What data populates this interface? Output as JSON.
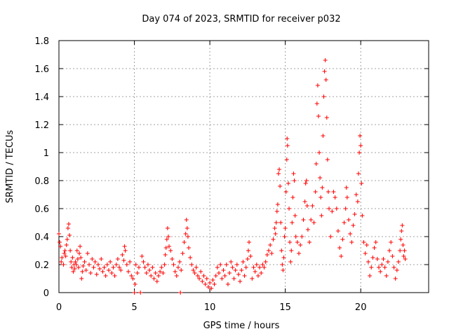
{
  "chart_data": {
    "type": "scatter",
    "title": "Day 074 of 2023, SRMTID for receiver p032",
    "xlabel": "GPS time / hours",
    "ylabel": "SRMTID / TECUs",
    "xlim": [
      0,
      24.5
    ],
    "ylim": [
      0,
      1.8
    ],
    "xticks": [
      0,
      5,
      10,
      15,
      20
    ],
    "xtick_labels": [
      "0",
      "5",
      "10",
      "15",
      "20"
    ],
    "yticks": [
      0,
      0.2,
      0.4,
      0.6,
      0.8,
      1.0,
      1.2,
      1.4,
      1.6,
      1.8
    ],
    "ytick_labels": [
      "0",
      "0.2",
      "0.4",
      "0.6",
      "0.8",
      "1",
      "1.2",
      "1.4",
      "1.6",
      "1.8"
    ],
    "grid": true,
    "marker": "+",
    "series": [
      {
        "name": "SRMTID",
        "color": "#ff0000",
        "points": [
          [
            0.0,
            0.42
          ],
          [
            0.05,
            0.36
          ],
          [
            0.1,
            0.33
          ],
          [
            0.15,
            0.22
          ],
          [
            0.2,
            0.25
          ],
          [
            0.3,
            0.2
          ],
          [
            0.35,
            0.28
          ],
          [
            0.4,
            0.3
          ],
          [
            0.45,
            0.26
          ],
          [
            0.5,
            0.34
          ],
          [
            0.55,
            0.38
          ],
          [
            0.6,
            0.46
          ],
          [
            0.65,
            0.49
          ],
          [
            0.7,
            0.41
          ],
          [
            0.75,
            0.3
          ],
          [
            0.8,
            0.22
          ],
          [
            0.85,
            0.18
          ],
          [
            0.9,
            0.25
          ],
          [
            0.95,
            0.15
          ],
          [
            1.0,
            0.2
          ],
          [
            1.05,
            0.17
          ],
          [
            1.1,
            0.22
          ],
          [
            1.15,
            0.2
          ],
          [
            1.2,
            0.3
          ],
          [
            1.25,
            0.24
          ],
          [
            1.3,
            0.18
          ],
          [
            1.35,
            0.28
          ],
          [
            1.4,
            0.33
          ],
          [
            1.45,
            0.25
          ],
          [
            1.5,
            0.1
          ],
          [
            1.55,
            0.15
          ],
          [
            1.6,
            0.19
          ],
          [
            1.7,
            0.22
          ],
          [
            1.8,
            0.16
          ],
          [
            1.9,
            0.28
          ],
          [
            2.0,
            0.2
          ],
          [
            2.1,
            0.14
          ],
          [
            2.2,
            0.24
          ],
          [
            2.3,
            0.18
          ],
          [
            2.4,
            0.22
          ],
          [
            2.5,
            0.13
          ],
          [
            2.6,
            0.2
          ],
          [
            2.7,
            0.17
          ],
          [
            2.8,
            0.24
          ],
          [
            2.9,
            0.15
          ],
          [
            3.0,
            0.18
          ],
          [
            3.1,
            0.12
          ],
          [
            3.2,
            0.2
          ],
          [
            3.3,
            0.16
          ],
          [
            3.4,
            0.22
          ],
          [
            3.5,
            0.14
          ],
          [
            3.6,
            0.18
          ],
          [
            3.7,
            0.12
          ],
          [
            3.8,
            0.2
          ],
          [
            3.9,
            0.24
          ],
          [
            4.0,
            0.18
          ],
          [
            4.1,
            0.16
          ],
          [
            4.2,
            0.27
          ],
          [
            4.3,
            0.23
          ],
          [
            4.35,
            0.33
          ],
          [
            4.4,
            0.3
          ],
          [
            4.5,
            0.2
          ],
          [
            4.6,
            0.15
          ],
          [
            4.7,
            0.22
          ],
          [
            4.8,
            0.12
          ],
          [
            4.9,
            0.1
          ],
          [
            5.0,
            0.0
          ],
          [
            5.05,
            0.06
          ],
          [
            5.1,
            0.2
          ],
          [
            5.2,
            0.14
          ],
          [
            5.3,
            0.18
          ],
          [
            5.4,
            0.0
          ],
          [
            5.5,
            0.26
          ],
          [
            5.6,
            0.22
          ],
          [
            5.7,
            0.18
          ],
          [
            5.8,
            0.14
          ],
          [
            5.9,
            0.2
          ],
          [
            6.0,
            0.16
          ],
          [
            6.1,
            0.12
          ],
          [
            6.2,
            0.18
          ],
          [
            6.3,
            0.1
          ],
          [
            6.4,
            0.14
          ],
          [
            6.5,
            0.08
          ],
          [
            6.6,
            0.12
          ],
          [
            6.7,
            0.15
          ],
          [
            6.8,
            0.18
          ],
          [
            6.9,
            0.14
          ],
          [
            7.0,
            0.2
          ],
          [
            7.05,
            0.27
          ],
          [
            7.1,
            0.32
          ],
          [
            7.15,
            0.38
          ],
          [
            7.2,
            0.46
          ],
          [
            7.25,
            0.4
          ],
          [
            7.3,
            0.33
          ],
          [
            7.4,
            0.3
          ],
          [
            7.5,
            0.24
          ],
          [
            7.6,
            0.2
          ],
          [
            7.7,
            0.15
          ],
          [
            7.8,
            0.12
          ],
          [
            7.9,
            0.18
          ],
          [
            8.0,
            0.22
          ],
          [
            8.05,
            0.0
          ],
          [
            8.1,
            0.16
          ],
          [
            8.2,
            0.28
          ],
          [
            8.3,
            0.36
          ],
          [
            8.4,
            0.42
          ],
          [
            8.45,
            0.52
          ],
          [
            8.5,
            0.46
          ],
          [
            8.55,
            0.4
          ],
          [
            8.6,
            0.32
          ],
          [
            8.7,
            0.25
          ],
          [
            8.8,
            0.2
          ],
          [
            8.9,
            0.16
          ],
          [
            9.0,
            0.14
          ],
          [
            9.1,
            0.18
          ],
          [
            9.2,
            0.12
          ],
          [
            9.3,
            0.1
          ],
          [
            9.4,
            0.15
          ],
          [
            9.5,
            0.08
          ],
          [
            9.6,
            0.12
          ],
          [
            9.7,
            0.06
          ],
          [
            9.8,
            0.1
          ],
          [
            9.9,
            0.04
          ],
          [
            10.0,
            0.07
          ],
          [
            10.1,
            0.03
          ],
          [
            10.2,
            0.09
          ],
          [
            10.3,
            0.06
          ],
          [
            10.4,
            0.12
          ],
          [
            10.5,
            0.18
          ],
          [
            10.6,
            0.14
          ],
          [
            10.7,
            0.2
          ],
          [
            10.8,
            0.1
          ],
          [
            10.9,
            0.16
          ],
          [
            11.0,
            0.12
          ],
          [
            11.1,
            0.2
          ],
          [
            11.2,
            0.06
          ],
          [
            11.3,
            0.14
          ],
          [
            11.4,
            0.22
          ],
          [
            11.5,
            0.18
          ],
          [
            11.6,
            0.1
          ],
          [
            11.7,
            0.16
          ],
          [
            11.8,
            0.2
          ],
          [
            11.9,
            0.13
          ],
          [
            12.0,
            0.08
          ],
          [
            12.1,
            0.16
          ],
          [
            12.2,
            0.22
          ],
          [
            12.3,
            0.12
          ],
          [
            12.4,
            0.18
          ],
          [
            12.5,
            0.24
          ],
          [
            12.55,
            0.3
          ],
          [
            12.6,
            0.36
          ],
          [
            12.7,
            0.26
          ],
          [
            12.8,
            0.1
          ],
          [
            12.9,
            0.18
          ],
          [
            13.0,
            0.15
          ],
          [
            13.1,
            0.2
          ],
          [
            13.2,
            0.12
          ],
          [
            13.3,
            0.18
          ],
          [
            13.4,
            0.14
          ],
          [
            13.5,
            0.2
          ],
          [
            13.6,
            0.18
          ],
          [
            13.7,
            0.22
          ],
          [
            13.8,
            0.27
          ],
          [
            13.9,
            0.3
          ],
          [
            14.0,
            0.34
          ],
          [
            14.1,
            0.28
          ],
          [
            14.2,
            0.38
          ],
          [
            14.3,
            0.46
          ],
          [
            14.35,
            0.42
          ],
          [
            14.4,
            0.5
          ],
          [
            14.45,
            0.58
          ],
          [
            14.5,
            0.63
          ],
          [
            14.55,
            0.85
          ],
          [
            14.6,
            0.88
          ],
          [
            14.65,
            0.76
          ],
          [
            14.7,
            0.5
          ],
          [
            14.75,
            0.3
          ],
          [
            14.8,
            0.2
          ],
          [
            14.85,
            0.16
          ],
          [
            14.9,
            0.25
          ],
          [
            14.95,
            0.4
          ],
          [
            15.0,
            0.46
          ],
          [
            15.05,
            0.72
          ],
          [
            15.1,
            0.95
          ],
          [
            15.12,
            1.1
          ],
          [
            15.15,
            1.05
          ],
          [
            15.2,
            0.78
          ],
          [
            15.25,
            0.6
          ],
          [
            15.3,
            0.36
          ],
          [
            15.35,
            0.22
          ],
          [
            15.4,
            0.3
          ],
          [
            15.45,
            0.5
          ],
          [
            15.5,
            0.68
          ],
          [
            15.55,
            0.85
          ],
          [
            15.6,
            0.8
          ],
          [
            15.65,
            0.55
          ],
          [
            15.7,
            0.4
          ],
          [
            15.8,
            0.36
          ],
          [
            15.9,
            0.28
          ],
          [
            16.0,
            0.34
          ],
          [
            16.1,
            0.4
          ],
          [
            16.2,
            0.52
          ],
          [
            16.3,
            0.65
          ],
          [
            16.35,
            0.78
          ],
          [
            16.4,
            0.8
          ],
          [
            16.45,
            0.62
          ],
          [
            16.5,
            0.45
          ],
          [
            16.6,
            0.36
          ],
          [
            16.7,
            0.52
          ],
          [
            16.8,
            0.62
          ],
          [
            16.9,
            0.5
          ],
          [
            17.0,
            0.72
          ],
          [
            17.05,
            0.92
          ],
          [
            17.1,
            1.35
          ],
          [
            17.15,
            1.48
          ],
          [
            17.2,
            1.26
          ],
          [
            17.25,
            1.0
          ],
          [
            17.3,
            0.82
          ],
          [
            17.35,
            0.68
          ],
          [
            17.4,
            0.55
          ],
          [
            17.45,
            0.75
          ],
          [
            17.5,
            1.12
          ],
          [
            17.55,
            1.4
          ],
          [
            17.6,
            1.58
          ],
          [
            17.65,
            1.66
          ],
          [
            17.7,
            1.52
          ],
          [
            17.75,
            1.25
          ],
          [
            17.8,
            0.95
          ],
          [
            17.85,
            0.72
          ],
          [
            17.9,
            0.6
          ],
          [
            18.0,
            0.4
          ],
          [
            18.1,
            0.58
          ],
          [
            18.2,
            0.72
          ],
          [
            18.3,
            0.68
          ],
          [
            18.4,
            0.6
          ],
          [
            18.5,
            0.44
          ],
          [
            18.6,
            0.32
          ],
          [
            18.7,
            0.26
          ],
          [
            18.8,
            0.38
          ],
          [
            18.9,
            0.5
          ],
          [
            19.0,
            0.6
          ],
          [
            19.05,
            0.75
          ],
          [
            19.1,
            0.68
          ],
          [
            19.2,
            0.52
          ],
          [
            19.3,
            0.42
          ],
          [
            19.4,
            0.36
          ],
          [
            19.5,
            0.48
          ],
          [
            19.6,
            0.56
          ],
          [
            19.7,
            0.7
          ],
          [
            19.8,
            0.65
          ],
          [
            19.85,
            0.85
          ],
          [
            19.9,
            1.0
          ],
          [
            19.95,
            1.12
          ],
          [
            20.0,
            1.05
          ],
          [
            20.05,
            0.78
          ],
          [
            20.1,
            0.55
          ],
          [
            20.2,
            0.36
          ],
          [
            20.3,
            0.28
          ],
          [
            20.4,
            0.34
          ],
          [
            20.5,
            0.22
          ],
          [
            20.6,
            0.12
          ],
          [
            20.7,
            0.18
          ],
          [
            20.8,
            0.25
          ],
          [
            20.9,
            0.32
          ],
          [
            21.0,
            0.36
          ],
          [
            21.1,
            0.24
          ],
          [
            21.2,
            0.18
          ],
          [
            21.3,
            0.15
          ],
          [
            21.4,
            0.2
          ],
          [
            21.5,
            0.24
          ],
          [
            21.6,
            0.18
          ],
          [
            21.7,
            0.12
          ],
          [
            21.8,
            0.22
          ],
          [
            21.9,
            0.3
          ],
          [
            22.0,
            0.36
          ],
          [
            22.1,
            0.26
          ],
          [
            22.2,
            0.18
          ],
          [
            22.3,
            0.1
          ],
          [
            22.4,
            0.16
          ],
          [
            22.5,
            0.22
          ],
          [
            22.6,
            0.3
          ],
          [
            22.65,
            0.38
          ],
          [
            22.7,
            0.44
          ],
          [
            22.75,
            0.48
          ],
          [
            22.8,
            0.34
          ],
          [
            22.85,
            0.26
          ],
          [
            22.9,
            0.3
          ],
          [
            22.95,
            0.24
          ]
        ]
      }
    ]
  }
}
